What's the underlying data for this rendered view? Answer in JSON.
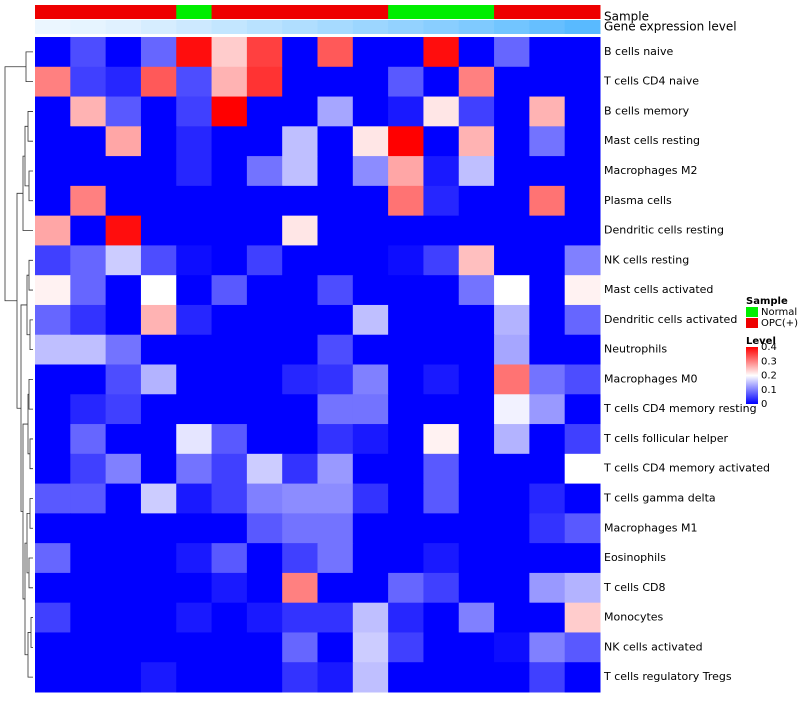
{
  "chart_data": {
    "type": "heatmap",
    "title": "",
    "annotation_tracks": {
      "sample_label": "Sample",
      "expression_label": "Gene expression level"
    },
    "sample_groups": [
      "OPC(+)",
      "OPC(+)",
      "OPC(+)",
      "OPC(+)",
      "Normal",
      "OPC(+)",
      "OPC(+)",
      "OPC(+)",
      "OPC(+)",
      "OPC(+)",
      "Normal",
      "Normal",
      "Normal",
      "OPC(+)",
      "OPC(+)",
      "OPC(+)"
    ],
    "expression_track": [
      0.03,
      0.06,
      0.1,
      0.16,
      0.22,
      0.28,
      0.34,
      0.4,
      0.46,
      0.52,
      0.58,
      0.64,
      0.7,
      0.78,
      0.86,
      0.94
    ],
    "rows": [
      "B cells naive",
      "T cells CD4 naive",
      "B cells memory",
      "Mast cells resting",
      "Macrophages M2",
      "Plasma cells",
      "Dendritic cells resting",
      "NK cells resting",
      "Mast cells activated",
      "Dendritic cells activated",
      "Neutrophils",
      "Macrophages M0",
      "T cells CD4 memory resting",
      "T cells follicular helper",
      "T cells CD4 memory activated",
      "T cells gamma delta",
      "Macrophages M1",
      "Eosinophils",
      "T cells CD8",
      "Monocytes",
      "NK cells activated",
      "T cells regulatory  Tregs"
    ],
    "values": [
      [
        0,
        0.06,
        0,
        0.08,
        0.39,
        0.24,
        0.35,
        0,
        0.33,
        0,
        0,
        0.39,
        0,
        0.08,
        0,
        0
      ],
      [
        0.3,
        0.05,
        0.03,
        0.33,
        0.06,
        0.26,
        0.36,
        0,
        0,
        0,
        0.07,
        0,
        0.3,
        0,
        0,
        0
      ],
      [
        0,
        0.26,
        0.07,
        0,
        0.05,
        0.4,
        0,
        0,
        0.13,
        0,
        0.02,
        0.22,
        0.05,
        0,
        0.26,
        0
      ],
      [
        0,
        0,
        0.27,
        0,
        0.03,
        0,
        0,
        0.15,
        0,
        0.22,
        0.4,
        0,
        0.26,
        0,
        0.09,
        0
      ],
      [
        0,
        0,
        0,
        0,
        0.03,
        0,
        0.09,
        0.15,
        0,
        0.11,
        0.27,
        0.02,
        0.15,
        0,
        0,
        0
      ],
      [
        0,
        0.3,
        0,
        0,
        0,
        0,
        0,
        0,
        0,
        0,
        0.31,
        0.03,
        0,
        0,
        0.31,
        0
      ],
      [
        0.27,
        0,
        0.39,
        0,
        0,
        0,
        0,
        0.22,
        0,
        0,
        0,
        0,
        0,
        0,
        0,
        0
      ],
      [
        0.05,
        0.08,
        0.16,
        0.06,
        0.01,
        0,
        0.05,
        0,
        0,
        0,
        0.01,
        0.05,
        0.25,
        0,
        0,
        0.1
      ],
      [
        0.21,
        0.08,
        0,
        0.2,
        0,
        0.07,
        0,
        0,
        0.06,
        0,
        0,
        0,
        0.09,
        0.2,
        0,
        0.21
      ],
      [
        0.08,
        0.04,
        0,
        0.26,
        0.03,
        0,
        0,
        0,
        0,
        0.15,
        0,
        0,
        0,
        0.14,
        0,
        0.08
      ],
      [
        0.15,
        0.15,
        0.09,
        0,
        0,
        0,
        0,
        0,
        0.06,
        0,
        0,
        0,
        0,
        0.13,
        0,
        0
      ],
      [
        0,
        0,
        0.06,
        0.14,
        0,
        0,
        0,
        0.03,
        0.04,
        0.1,
        0,
        0.02,
        0,
        0.31,
        0.09,
        0.06
      ],
      [
        0,
        0.03,
        0.05,
        0,
        0,
        0,
        0,
        0,
        0.09,
        0.09,
        0,
        0,
        0,
        0.19,
        0.12,
        0
      ],
      [
        0,
        0.08,
        0,
        0,
        0.18,
        0.07,
        0,
        0,
        0.04,
        0.02,
        0,
        0.21,
        0,
        0.14,
        0,
        0.05
      ],
      [
        0,
        0.05,
        0.1,
        0,
        0.09,
        0.05,
        0.16,
        0.04,
        0.12,
        0,
        0,
        0.07,
        0,
        0,
        0,
        0.2
      ],
      [
        0.07,
        0.07,
        0,
        0.16,
        0.02,
        0.05,
        0.1,
        0.11,
        0.11,
        0.04,
        0,
        0.07,
        0,
        0,
        0.03,
        0
      ],
      [
        0,
        0,
        0,
        0,
        0,
        0,
        0.07,
        0.09,
        0.09,
        0,
        0,
        0,
        0,
        0,
        0.04,
        0.07
      ],
      [
        0.08,
        0,
        0,
        0,
        0.02,
        0.07,
        0,
        0.05,
        0.09,
        0,
        0,
        0.02,
        0,
        0,
        0,
        0
      ],
      [
        0,
        0,
        0,
        0,
        0,
        0.02,
        0,
        0.3,
        0,
        0,
        0.08,
        0.05,
        0,
        0,
        0.12,
        0.14
      ],
      [
        0.05,
        0,
        0,
        0,
        0.02,
        0,
        0.02,
        0.04,
        0.04,
        0.15,
        0.03,
        0,
        0.1,
        0,
        0,
        0.24
      ],
      [
        0,
        0,
        0,
        0,
        0,
        0,
        0,
        0.08,
        0,
        0.16,
        0.05,
        0,
        0,
        0.01,
        0.1,
        0.07
      ],
      [
        0,
        0,
        0,
        0.02,
        0,
        0,
        0,
        0.04,
        0.02,
        0.15,
        0,
        0,
        0,
        0,
        0.05,
        0
      ]
    ],
    "legend_sample": {
      "title": "Sample",
      "items": [
        {
          "label": "Normal",
          "color": "#00ee00"
        },
        {
          "label": "OPC(+)",
          "color": "#ee0000"
        }
      ]
    },
    "legend_level": {
      "title": "Level",
      "ticks": [
        {
          "value": 0.4,
          "label": "0.4"
        },
        {
          "value": 0.3,
          "label": "0.3"
        },
        {
          "value": 0.2,
          "label": "0.2"
        },
        {
          "value": 0.1,
          "label": "0.1"
        },
        {
          "value": 0,
          "label": "0"
        }
      ],
      "range": [
        0,
        0.4
      ]
    },
    "colors": {
      "low": "#0000ff",
      "mid": "#ffffff",
      "high": "#ff0000",
      "normal": "#00ee00",
      "opc": "#ee0000",
      "track_light": "#f0f8ff",
      "track_dark": "#4fb6ff"
    },
    "dendrogram": true
  }
}
